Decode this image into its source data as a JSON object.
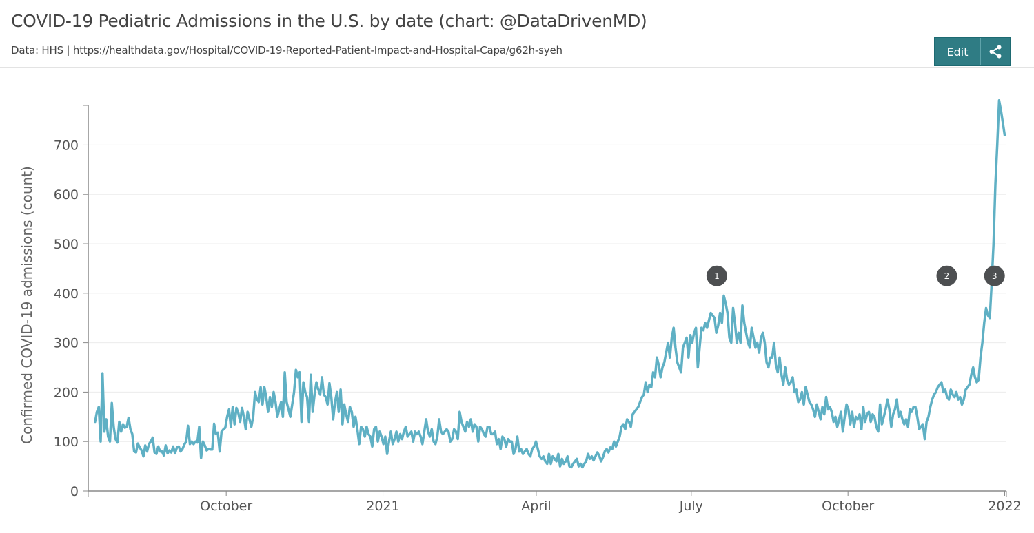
{
  "header": {
    "title": "COVID-19 Pediatric Admissions in the U.S. by date (chart: @DataDrivenMD)",
    "subtitle": "Data: HHS | https://healthdata.gov/Hospital/COVID-19-Reported-Patient-Impact-and-Hospital-Capa/g62h-syeh",
    "edit_label": "Edit",
    "share_icon": "share-icon"
  },
  "colors": {
    "line": "#5fb0c4",
    "button": "#2f7c84",
    "annotation": "#4d4f51",
    "grid": "#ececec",
    "axis": "#8a8a8a"
  },
  "chart_data": {
    "type": "line",
    "title": "COVID-19 Pediatric Admissions in the U.S. by date (chart: @DataDrivenMD)",
    "xlabel": "",
    "ylabel": "Confirmed COVID-19 admissions (count)",
    "ylim": [
      0,
      780
    ],
    "yticks": [
      0,
      100,
      200,
      300,
      400,
      500,
      600,
      700
    ],
    "xlim": [
      "2020-07-12",
      "2022-01-02"
    ],
    "xticks": [
      {
        "date": "2020-10-01",
        "label": "October"
      },
      {
        "date": "2021-01-01",
        "label": "2021"
      },
      {
        "date": "2021-04-01",
        "label": "April"
      },
      {
        "date": "2021-07-01",
        "label": "July"
      },
      {
        "date": "2021-10-01",
        "label": "October"
      },
      {
        "date": "2022-01-01",
        "label": "2022"
      }
    ],
    "grid": true,
    "legend": "none",
    "series": [
      {
        "name": "Confirmed COVID-19 pediatric admissions",
        "start_date": "2020-07-16",
        "step_days": 3,
        "values": [
          140,
          160,
          170,
          100,
          238,
          120,
          145,
          110,
          100,
          178,
          130,
          105,
          98,
          140,
          120,
          135,
          128,
          130,
          148,
          125,
          115,
          80,
          78,
          96,
          88,
          82,
          70,
          92,
          80,
          95,
          100,
          108,
          78,
          75,
          90,
          80,
          80,
          72,
          92,
          76,
          82,
          78,
          90,
          76,
          88,
          90,
          80,
          85,
          94,
          100,
          132,
          95,
          100,
          95,
          100,
          98,
          130,
          67,
          100,
          92,
          82,
          85,
          84,
          84,
          136,
          115,
          118,
          80,
          120,
          125,
          128,
          150,
          165,
          130,
          170,
          135,
          168,
          158,
          140,
          168,
          150,
          125,
          160,
          145,
          130,
          150,
          200,
          185,
          180,
          210,
          175,
          210,
          190,
          160,
          190,
          170,
          200,
          180,
          150,
          165,
          180,
          150,
          240,
          180,
          165,
          150,
          175,
          200,
          245,
          230,
          240,
          140,
          220,
          200,
          190,
          140,
          235,
          160,
          195,
          220,
          205,
          195,
          230,
          195,
          190,
          175,
          218,
          190,
          145,
          180,
          200,
          160,
          205,
          135,
          175,
          155,
          140,
          170,
          160,
          130,
          150,
          125,
          95,
          130,
          125,
          110,
          130,
          115,
          110,
          90,
          125,
          130,
          100,
          120,
          110,
          95,
          110,
          75,
          100,
          120,
          95,
          105,
          120,
          100,
          115,
          105,
          120,
          130,
          110,
          115,
          120,
          100,
          120,
          115,
          120,
          110,
          95,
          120,
          145,
          120,
          110,
          125,
          100,
          95,
          110,
          145,
          120,
          115,
          120,
          125,
          120,
          100,
          105,
          125,
          120,
          105,
          160,
          140,
          130,
          120,
          140,
          130,
          145,
          120,
          135,
          130,
          100,
          130,
          125,
          115,
          110,
          130,
          130,
          115,
          115,
          120,
          95,
          105,
          85,
          110,
          105,
          90,
          105,
          100,
          100,
          75,
          85,
          110,
          80,
          85,
          75,
          80,
          85,
          75,
          70,
          85,
          90,
          100,
          85,
          70,
          65,
          70,
          60,
          55,
          75,
          55,
          70,
          65,
          60,
          75,
          50,
          65,
          55,
          60,
          70,
          50,
          48,
          55,
          60,
          65,
          50,
          55,
          48,
          55,
          60,
          75,
          65,
          70,
          62,
          70,
          78,
          72,
          60,
          68,
          80,
          85,
          78,
          88,
          85,
          100,
          90,
          100,
          110,
          130,
          135,
          125,
          145,
          140,
          130,
          155,
          160,
          165,
          170,
          180,
          190,
          195,
          220,
          200,
          215,
          210,
          240,
          230,
          270,
          255,
          230,
          250,
          260,
          280,
          300,
          270,
          310,
          330,
          290,
          260,
          250,
          240,
          290,
          300,
          310,
          270,
          315,
          300,
          320,
          330,
          250,
          290,
          330,
          325,
          340,
          330,
          345,
          360,
          355,
          350,
          320,
          335,
          360,
          340,
          395,
          380,
          360,
          310,
          300,
          370,
          340,
          300,
          320,
          300,
          375,
          340,
          320,
          300,
          290,
          330,
          310,
          290,
          300,
          280,
          310,
          320,
          300,
          260,
          250,
          270,
          270,
          300,
          255,
          240,
          270,
          235,
          215,
          250,
          225,
          215,
          220,
          230,
          200,
          205,
          180,
          185,
          200,
          175,
          210,
          195,
          180,
          175,
          165,
          150,
          175,
          160,
          145,
          170,
          155,
          190,
          165,
          170,
          160,
          140,
          150,
          130,
          145,
          160,
          120,
          150,
          175,
          165,
          135,
          160,
          130,
          150,
          145,
          155,
          125,
          170,
          140,
          155,
          160,
          140,
          155,
          150,
          130,
          120,
          175,
          135,
          150,
          165,
          185,
          165,
          130,
          155,
          165,
          185,
          150,
          160,
          145,
          135,
          145,
          130,
          165,
          160,
          170,
          170,
          150,
          125,
          130,
          135,
          105,
          140,
          150,
          170,
          185,
          195,
          200,
          210,
          215,
          220,
          200,
          205,
          190,
          185,
          205,
          195,
          190,
          200,
          185,
          190,
          175,
          185,
          205,
          210,
          215,
          235,
          250,
          230,
          220,
          225,
          270,
          300,
          340,
          370,
          355,
          350,
          420,
          500,
          620,
          700,
          790,
          770,
          745,
          720
        ]
      }
    ],
    "annotations": [
      {
        "label": "1",
        "date": "2021-07-16",
        "y": 435
      },
      {
        "label": "2",
        "date": "2021-11-28",
        "y": 435
      },
      {
        "label": "3",
        "date": "2021-12-26",
        "y": 435
      }
    ]
  }
}
